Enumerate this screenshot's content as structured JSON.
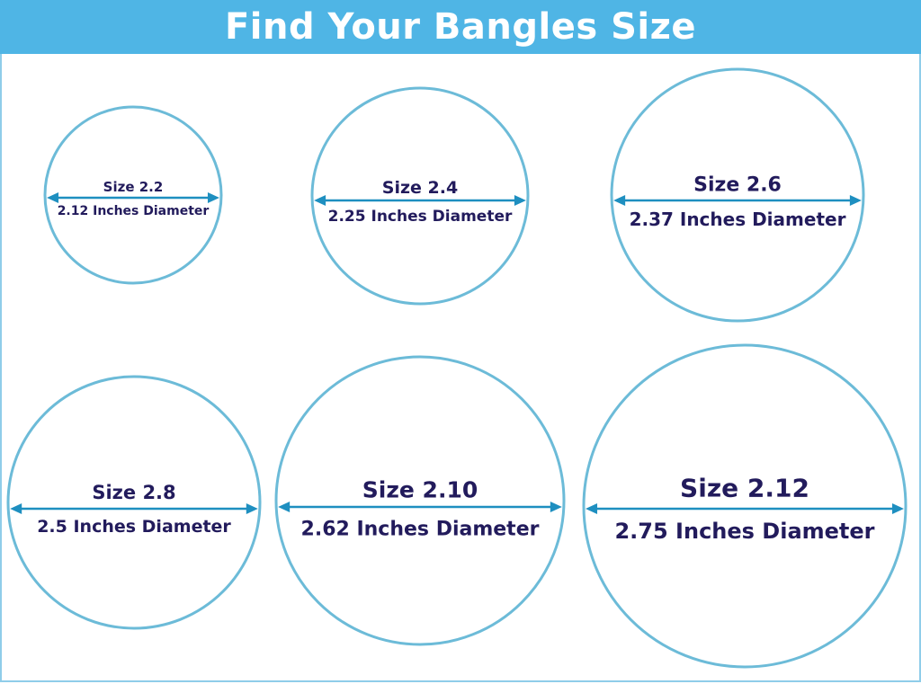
{
  "title": "Find Your Bangles Size",
  "colors": {
    "header": "#4fb5e5",
    "circle": "#6cbbd8",
    "arrow": "#1e8fc0",
    "text": "#221b5c"
  },
  "bangles": [
    {
      "size": "Size 2.2",
      "diameter": "2.12 Inches Diameter"
    },
    {
      "size": "Size 2.4",
      "diameter": "2.25 Inches Diameter"
    },
    {
      "size": "Size 2.6",
      "diameter": "2.37 Inches Diameter"
    },
    {
      "size": "Size 2.8",
      "diameter": "2.5 Inches Diameter"
    },
    {
      "size": "Size 2.10",
      "diameter": "2.62 Inches Diameter"
    },
    {
      "size": "Size 2.12",
      "diameter": "2.75 Inches Diameter"
    }
  ]
}
